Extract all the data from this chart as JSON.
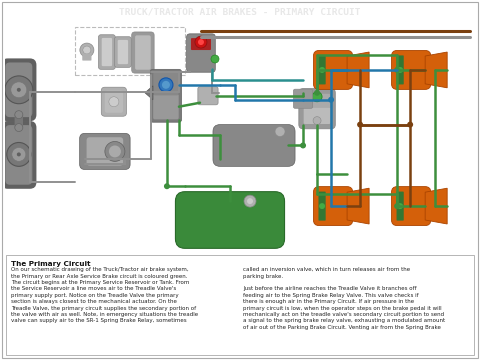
{
  "title": "TRUCK/TRACTOR AIR BRAKES - PRIMARY CIRCUIT",
  "title_bg": "#1c1c1c",
  "title_fg": "#e8e8e8",
  "outer_bg": "#ffffff",
  "diagram_bg": "#ffffff",
  "text_bg": "#c8c8c8",
  "primary_circuit_title": "The Primary Circuit",
  "primary_text_left": "On our schematic drawing of the Truck/Tractor air brake system,\nthe Primary or Rear Axle Service Brake circuit is coloured green.\nThe circuit begins at the Primary Service Reservoir or Tank. From\nthe Service Reservoir a line moves air to the Treadle Valve's\nprimary supply port. Notice on the Treadle Valve the primary\nsection is always closest to the mechanical actuator. On the\nTreadle Valve, the primary circuit supplies the secondary portion of\nthe valve with air as well. Note, in emergency situations the treadle\nvalve can supply air to the SR-1 Spring Brake Relay, sometimes",
  "primary_text_right": "called an inversion valve, which in turn releases air from the\nparking brake.\n\nJust before the airline reaches the Treadle Valve it branches off\nfeeding air to the Spring Brake Relay Valve. This valve checks if\nthere is enough air in the Primary Circuit. If air pressure in the\nprimary circuit is low, when the operator steps on the brake pedal it will\nmechanically act on the treadle valve's secondary circuit portion to send\na signal to the spring brake relay valve, exhausting a modulated amount\nof air out of the Parking Brake Circuit. Venting air from the Spring Brake",
  "green": "#4d9944",
  "orange": "#d4600a",
  "blue": "#3388bb",
  "teal": "#2a8f8f",
  "gray": "#888888",
  "dark_gray": "#606060",
  "light_gray": "#b0b0b0",
  "brown": "#7a4010",
  "red_dot": "#cc1111",
  "green_tank": "#3a8a3a",
  "line_gray": "#909090",
  "line_green": "#3d8f3d",
  "line_blue": "#2277aa",
  "line_brown": "#7a4010"
}
